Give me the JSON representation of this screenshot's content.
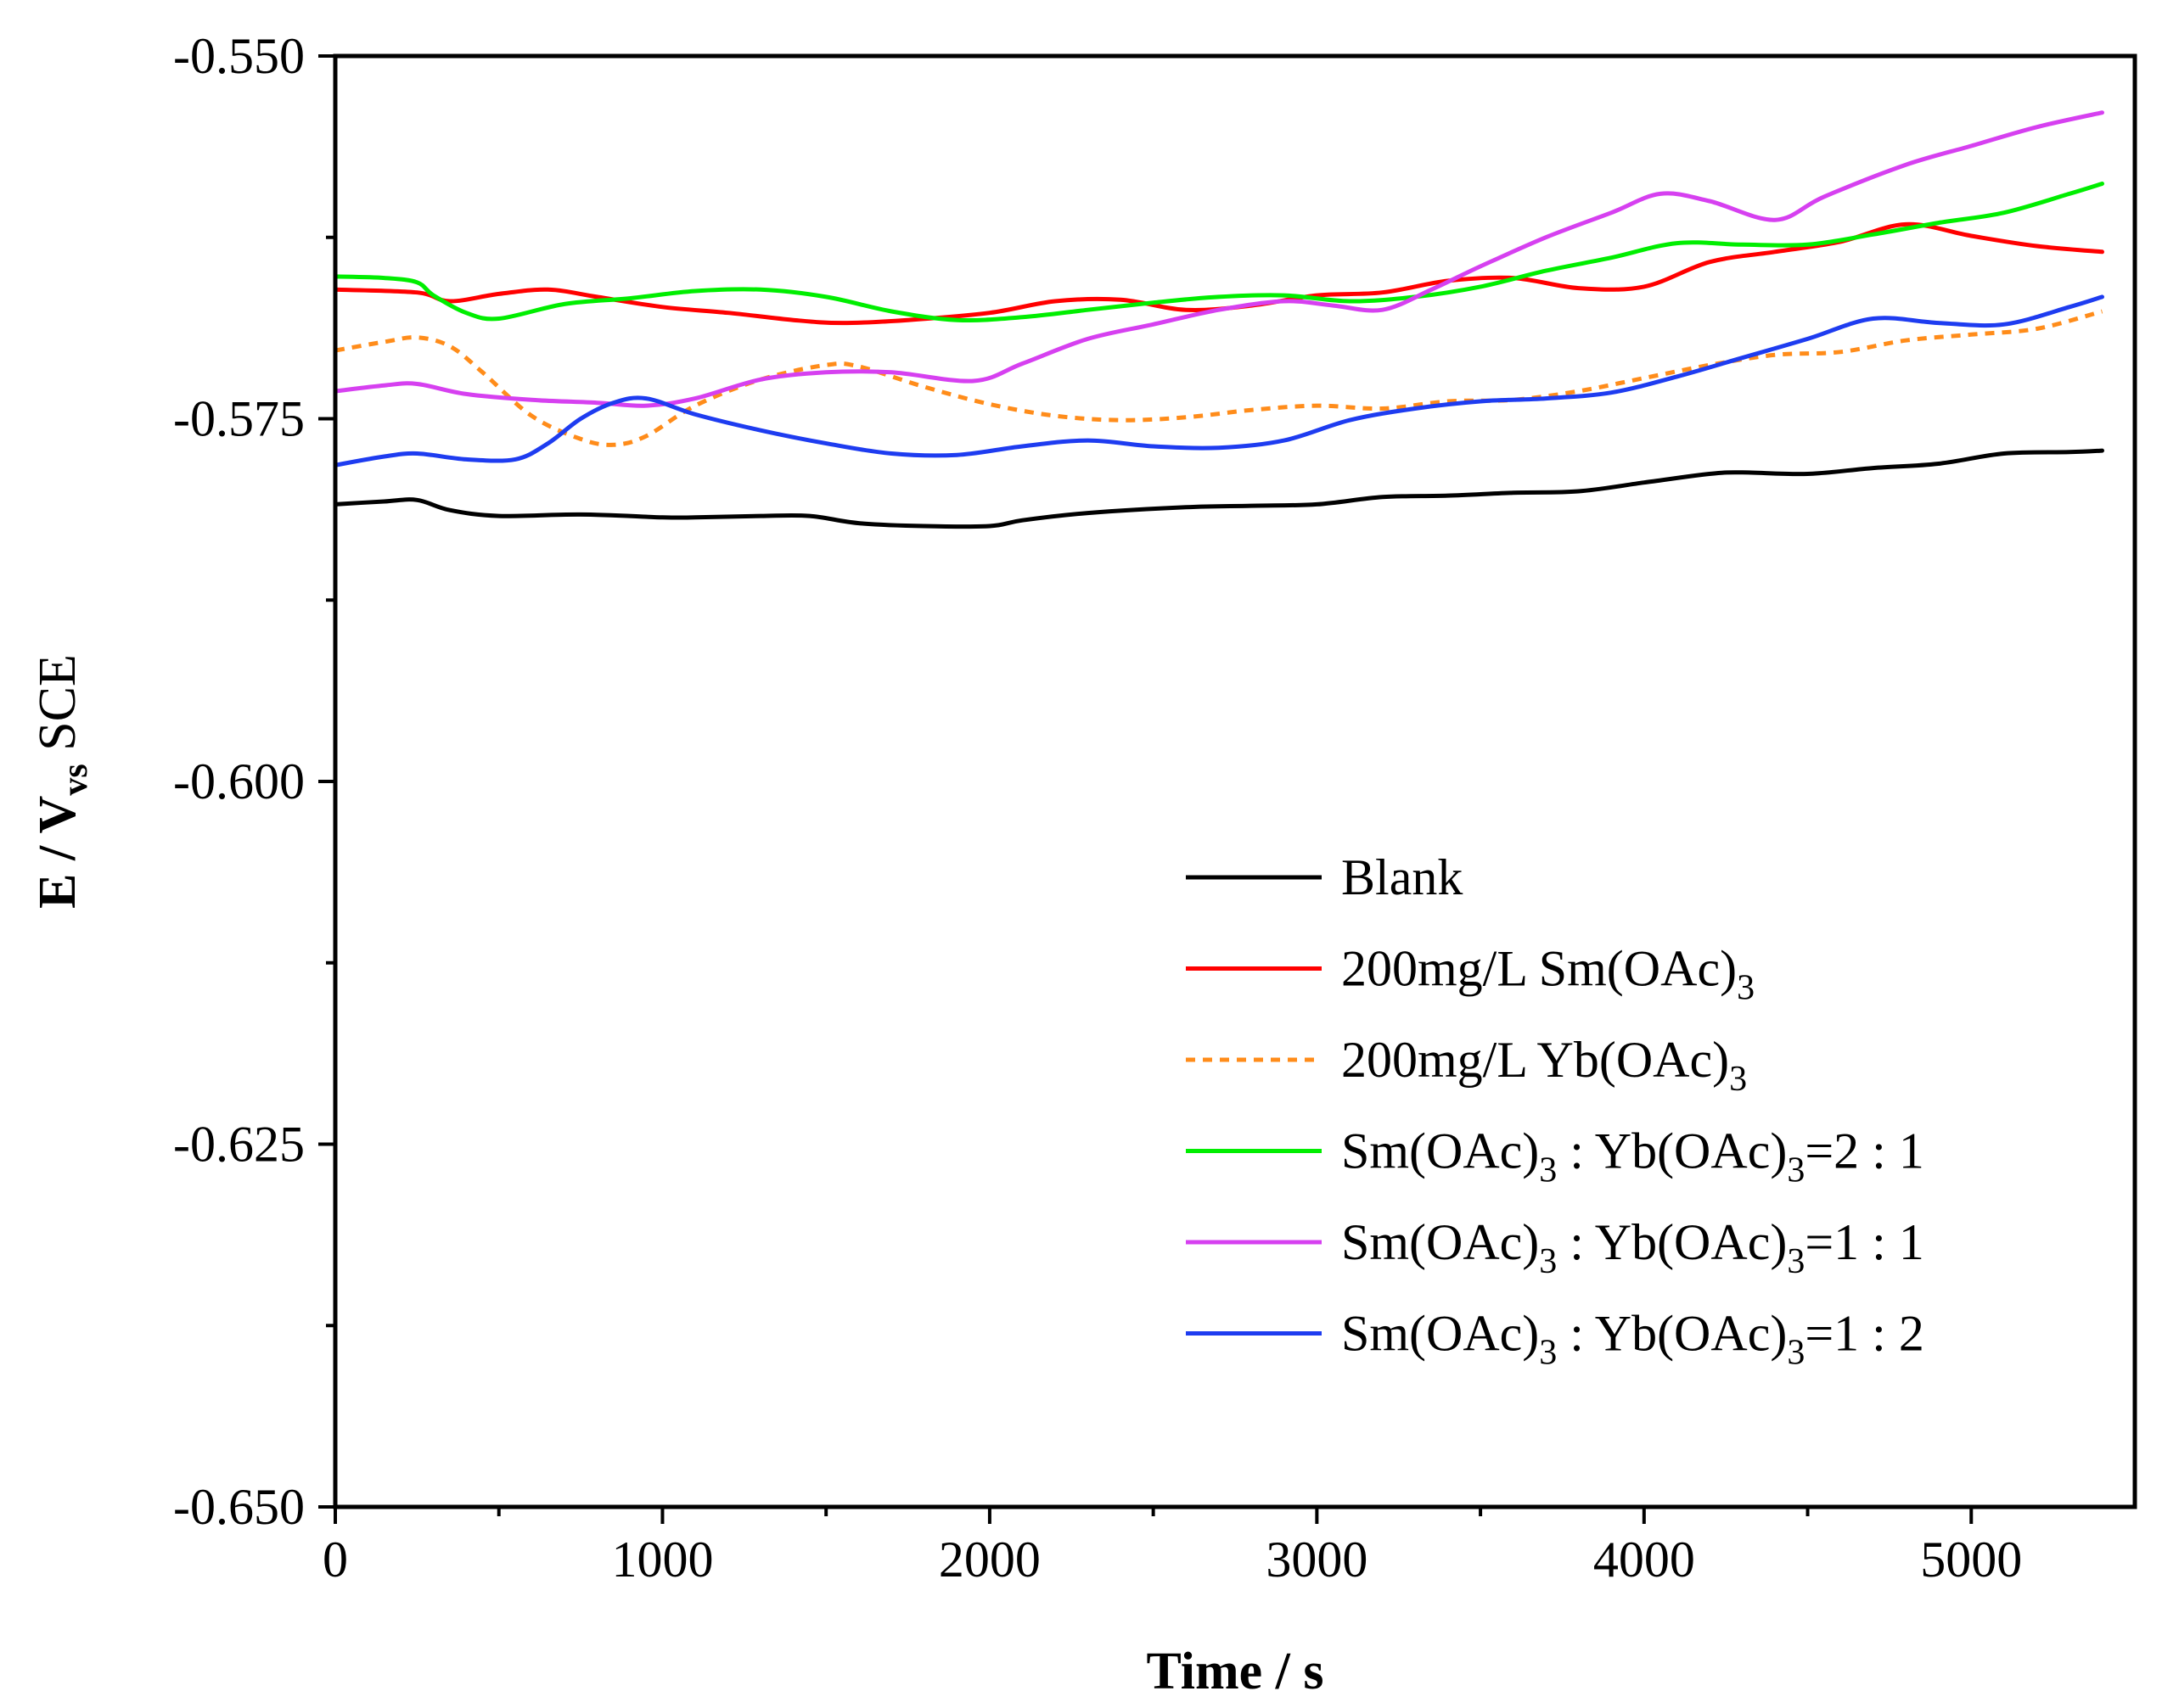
{
  "chart_data": {
    "type": "line",
    "title": "",
    "xlabel": "Time / s",
    "ylabel": {
      "main": "E / V",
      "sub": "vs",
      "rest": " SCE"
    },
    "xlim": [
      0,
      5500
    ],
    "ylim": [
      -0.65,
      -0.55
    ],
    "xticks": [
      0,
      1000,
      2000,
      3000,
      4000,
      5000
    ],
    "xtick_labels": [
      "0",
      "1000",
      "2000",
      "3000",
      "4000",
      "5000"
    ],
    "xminor": [
      500,
      1500,
      2500,
      3500,
      4500
    ],
    "yticks": [
      -0.65,
      -0.625,
      -0.6,
      -0.575,
      -0.55
    ],
    "ytick_labels": [
      "-0.650",
      "-0.625",
      "-0.600",
      "-0.575",
      "-0.550"
    ],
    "yminor": [
      -0.6375,
      -0.6125,
      -0.5875,
      -0.5625
    ],
    "grid": false,
    "legend_position": "bottom-right",
    "series": [
      {
        "name": "Blank",
        "legend": [
          {
            "t": "Blank"
          }
        ],
        "color": "#000000",
        "dash": false,
        "x": [
          0,
          150,
          250,
          350,
          500,
          750,
          1000,
          1100,
          1300,
          1450,
          1600,
          1800,
          2000,
          2100,
          2300,
          2600,
          2800,
          3000,
          3200,
          3400,
          3600,
          3800,
          4000,
          4200,
          4300,
          4500,
          4700,
          4900,
          5100,
          5300,
          5400
        ],
        "values": [
          -0.5809,
          -0.5807,
          -0.5806,
          -0.5813,
          -0.5817,
          -0.5816,
          -0.5818,
          -0.5818,
          -0.5817,
          -0.5817,
          -0.5822,
          -0.5824,
          -0.5824,
          -0.582,
          -0.5815,
          -0.5811,
          -0.581,
          -0.5809,
          -0.5804,
          -0.5803,
          -0.5801,
          -0.58,
          -0.5794,
          -0.5788,
          -0.5787,
          -0.5788,
          -0.5784,
          -0.5781,
          -0.5774,
          -0.5773,
          -0.5772
        ]
      },
      {
        "name": "200mg/L Sm(OAc)3",
        "legend": [
          {
            "t": "200mg/L Sm(OAc)"
          },
          {
            "t": "3",
            "sub": true
          }
        ],
        "color": "#ff0000",
        "dash": false,
        "x": [
          0,
          250,
          350,
          500,
          650,
          800,
          1000,
          1200,
          1400,
          1550,
          1750,
          2000,
          2200,
          2400,
          2600,
          2800,
          3000,
          3200,
          3400,
          3600,
          3800,
          4000,
          4200,
          4400,
          4600,
          4800,
          5000,
          5200,
          5400
        ],
        "values": [
          -0.5661,
          -0.5663,
          -0.5669,
          -0.5664,
          -0.5661,
          -0.5666,
          -0.5673,
          -0.5677,
          -0.5682,
          -0.5684,
          -0.5682,
          -0.5677,
          -0.5669,
          -0.5668,
          -0.5675,
          -0.5672,
          -0.5665,
          -0.5663,
          -0.5655,
          -0.5653,
          -0.566,
          -0.5659,
          -0.5642,
          -0.5635,
          -0.5628,
          -0.5616,
          -0.5624,
          -0.5631,
          -0.5635
        ]
      },
      {
        "name": "200mg/L Yb(OAc)3",
        "legend": [
          {
            "t": "200mg/L Yb(OAc)"
          },
          {
            "t": "3",
            "sub": true
          }
        ],
        "color": "#ff8c1a",
        "dash": true,
        "x": [
          0,
          150,
          250,
          350,
          450,
          600,
          750,
          850,
          950,
          1100,
          1300,
          1500,
          1600,
          1800,
          2000,
          2200,
          2400,
          2600,
          2800,
          3000,
          3200,
          3400,
          3600,
          3800,
          4000,
          4200,
          4400,
          4600,
          4800,
          5000,
          5200,
          5400
        ],
        "values": [
          -0.5703,
          -0.5697,
          -0.5694,
          -0.57,
          -0.5718,
          -0.5748,
          -0.5764,
          -0.5768,
          -0.5762,
          -0.5741,
          -0.5723,
          -0.5713,
          -0.5714,
          -0.5728,
          -0.574,
          -0.5748,
          -0.5751,
          -0.5749,
          -0.5744,
          -0.5741,
          -0.5743,
          -0.5738,
          -0.5737,
          -0.5731,
          -0.5722,
          -0.5713,
          -0.5706,
          -0.5704,
          -0.5696,
          -0.5692,
          -0.5688,
          -0.5676
        ]
      },
      {
        "name": "Sm(OAc)3 : Yb(OAc)3=2 : 1",
        "legend": [
          {
            "t": "Sm(OAc)"
          },
          {
            "t": "3",
            "sub": true
          },
          {
            "t": " : Yb(OAc)"
          },
          {
            "t": "3",
            "sub": true
          },
          {
            "t": "=2 : 1"
          }
        ],
        "color": "#00ee00",
        "dash": false,
        "x": [
          0,
          150,
          250,
          300,
          400,
          500,
          700,
          900,
          1100,
          1300,
          1500,
          1700,
          1900,
          2100,
          2300,
          2500,
          2700,
          2900,
          3100,
          3300,
          3500,
          3700,
          3900,
          4100,
          4300,
          4500,
          4700,
          4900,
          5100,
          5300,
          5400
        ],
        "values": [
          -0.5652,
          -0.5653,
          -0.5656,
          -0.5665,
          -0.5677,
          -0.5681,
          -0.5671,
          -0.5667,
          -0.5662,
          -0.5661,
          -0.5666,
          -0.5676,
          -0.5682,
          -0.568,
          -0.5675,
          -0.567,
          -0.5666,
          -0.5665,
          -0.5669,
          -0.5666,
          -0.5659,
          -0.5648,
          -0.5639,
          -0.5629,
          -0.563,
          -0.563,
          -0.5623,
          -0.5615,
          -0.5608,
          -0.5595,
          -0.5588
        ]
      },
      {
        "name": "Sm(OAc)3 : Yb(OAc)3=1 : 1",
        "legend": [
          {
            "t": "Sm(OAc)"
          },
          {
            "t": "3",
            "sub": true
          },
          {
            "t": " : Yb(OAc)"
          },
          {
            "t": "3",
            "sub": true
          },
          {
            "t": "=1 : 1"
          }
        ],
        "color": "#d640f0",
        "dash": false,
        "x": [
          0,
          150,
          250,
          400,
          600,
          800,
          950,
          1100,
          1300,
          1500,
          1700,
          1950,
          2100,
          2300,
          2500,
          2700,
          2900,
          3050,
          3200,
          3350,
          3500,
          3700,
          3900,
          4050,
          4200,
          4400,
          4550,
          4800,
          5000,
          5200,
          5400
        ],
        "values": [
          -0.5731,
          -0.5727,
          -0.5726,
          -0.5733,
          -0.5737,
          -0.5739,
          -0.5741,
          -0.5736,
          -0.5723,
          -0.5718,
          -0.5718,
          -0.5724,
          -0.5712,
          -0.5695,
          -0.5685,
          -0.5675,
          -0.5669,
          -0.5672,
          -0.5675,
          -0.5661,
          -0.5645,
          -0.5625,
          -0.5608,
          -0.5595,
          -0.56,
          -0.5613,
          -0.5597,
          -0.5575,
          -0.5562,
          -0.5549,
          -0.5539
        ]
      },
      {
        "name": "Sm(OAc)3 : Yb(OAc)3=1 : 2",
        "legend": [
          {
            "t": "Sm(OAc)"
          },
          {
            "t": "3",
            "sub": true
          },
          {
            "t": " : Yb(OAc)"
          },
          {
            "t": "3",
            "sub": true
          },
          {
            "t": "=1 : 2"
          }
        ],
        "color": "#1e3cf0",
        "dash": false,
        "x": [
          0,
          150,
          250,
          400,
          550,
          650,
          750,
          850,
          950,
          1100,
          1300,
          1500,
          1700,
          1900,
          2100,
          2300,
          2500,
          2700,
          2900,
          3100,
          3300,
          3500,
          3700,
          3900,
          4100,
          4300,
          4500,
          4700,
          4900,
          5100,
          5300,
          5400
        ],
        "values": [
          -0.5782,
          -0.5776,
          -0.5774,
          -0.5778,
          -0.5778,
          -0.5767,
          -0.575,
          -0.5739,
          -0.5736,
          -0.5747,
          -0.5758,
          -0.5767,
          -0.5774,
          -0.5775,
          -0.5769,
          -0.5765,
          -0.5769,
          -0.577,
          -0.5765,
          -0.5751,
          -0.5743,
          -0.5738,
          -0.5736,
          -0.5732,
          -0.5721,
          -0.5708,
          -0.5695,
          -0.5681,
          -0.5684,
          -0.5685,
          -0.5673,
          -0.5666
        ]
      }
    ]
  }
}
